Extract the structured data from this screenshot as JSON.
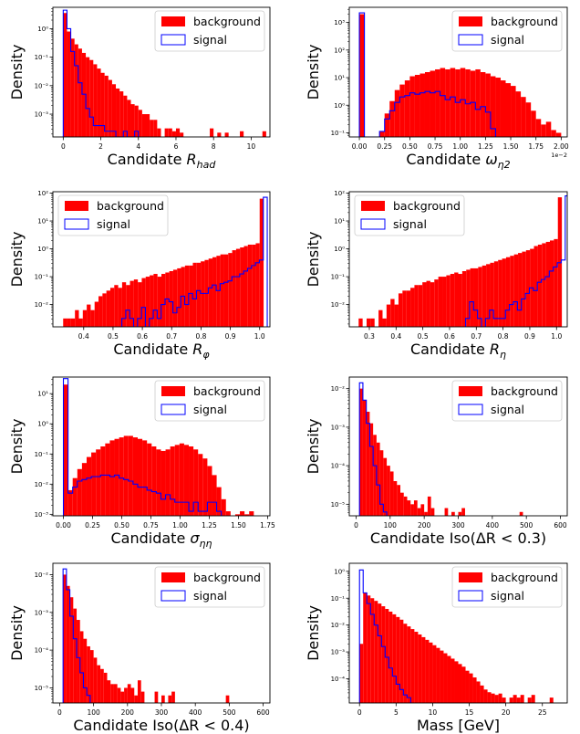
{
  "colors": {
    "background": "#ff0000",
    "signal": "#0000ff",
    "axis": "#000000"
  },
  "legend": {
    "background_label": "background",
    "signal_label": "signal"
  },
  "chart_data": [
    {
      "type": "histogram",
      "scale_y": "log",
      "ylabel": "Density",
      "xlabel": "Candidate R_had",
      "xlim": [
        -0.55,
        11.0
      ],
      "ylim_exp": [
        -3.8,
        0.75
      ],
      "xticks": [
        0,
        2,
        4,
        6,
        8,
        10
      ],
      "xtick_labels": [
        "0",
        "2",
        "4",
        "6",
        "8",
        "10"
      ],
      "yticks_exp": [
        0,
        -1,
        -2,
        -3
      ],
      "series": [
        {
          "name": "background",
          "kind": "filled",
          "bin_start": 0.0,
          "bin_width": 0.2,
          "log_values": [
            0.55,
            -0.1,
            -0.35,
            -0.55,
            -0.7,
            -0.85,
            -1.0,
            -1.1,
            -1.25,
            -1.4,
            -1.55,
            -1.65,
            -1.8,
            -1.95,
            -2.1,
            -2.2,
            -2.35,
            -2.5,
            -2.65,
            -2.7,
            -2.85,
            -3.0,
            -3.0,
            -3.2,
            -3.2,
            -3.5,
            null,
            -3.5,
            -3.5,
            -3.6,
            -3.5,
            -3.65,
            null,
            null,
            null,
            null,
            null,
            null,
            null,
            -3.5,
            null,
            -3.65,
            null,
            -3.65,
            null,
            null,
            null,
            -3.6,
            null,
            null,
            null,
            null,
            null,
            -3.6
          ]
        },
        {
          "name": "signal",
          "kind": "step",
          "bin_start": 0.0,
          "bin_width": 0.2,
          "log_values": [
            0.65,
            0.0,
            -0.8,
            -1.3,
            -1.9,
            -2.3,
            -2.8,
            -3.1,
            -3.4,
            -3.4,
            -3.4,
            -3.6,
            -3.6,
            -3.6,
            null,
            null,
            -3.6,
            null,
            null,
            -3.6
          ]
        }
      ]
    },
    {
      "type": "histogram",
      "scale_y": "log",
      "ylabel": "Density",
      "xlabel": "Candidate ω_η2",
      "xlim": [
        -0.1,
        2.06
      ],
      "ylim_exp": [
        -1.15,
        3.55
      ],
      "xticks": [
        0,
        0.25,
        0.5,
        0.75,
        1.0,
        1.25,
        1.5,
        1.75,
        2.0
      ],
      "xtick_labels": [
        "0.00",
        "0.25",
        "0.50",
        "0.75",
        "1.00",
        "1.25",
        "1.50",
        "1.75",
        "2.00"
      ],
      "offset_label": "1e−2",
      "yticks_exp": [
        3,
        2,
        1,
        0,
        -1
      ],
      "series": [
        {
          "name": "background",
          "kind": "filled",
          "bin_start": 0.0,
          "bin_width": 0.05,
          "log_values": [
            3.3,
            null,
            null,
            null,
            -0.95,
            -0.3,
            0.15,
            0.55,
            0.75,
            0.9,
            1.05,
            1.1,
            1.15,
            1.2,
            1.25,
            1.3,
            1.35,
            1.3,
            1.35,
            1.3,
            1.35,
            1.3,
            1.25,
            1.3,
            1.2,
            1.15,
            1.05,
            1.0,
            0.9,
            0.8,
            0.7,
            0.5,
            0.3,
            0.1,
            -0.2,
            -0.5,
            -0.7,
            -0.6,
            -0.9,
            -1.0
          ]
        },
        {
          "name": "signal",
          "kind": "step",
          "bin_start": 0.0,
          "bin_width": 0.05,
          "log_values": [
            3.35,
            null,
            null,
            null,
            -0.95,
            -0.5,
            -0.2,
            0.1,
            0.3,
            0.35,
            0.45,
            0.4,
            0.45,
            0.5,
            0.45,
            0.5,
            0.35,
            0.2,
            0.3,
            0.1,
            0.2,
            0.05,
            0.1,
            -0.15,
            -0.05,
            -0.25,
            -0.85
          ]
        }
      ]
    },
    {
      "type": "histogram",
      "scale_y": "log",
      "ylabel": "Density",
      "xlabel": "Candidate R_φ",
      "xlim": [
        0.295,
        1.035
      ],
      "ylim_exp": [
        -2.8,
        2.05
      ],
      "xticks": [
        0.4,
        0.5,
        0.6,
        0.7,
        0.8,
        0.9,
        1.0
      ],
      "xtick_labels": [
        "0.4",
        "0.5",
        "0.6",
        "0.7",
        "0.8",
        "0.9",
        "1.0"
      ],
      "yticks_exp": [
        2,
        1,
        0,
        -1,
        -2
      ],
      "series": [
        {
          "name": "background",
          "kind": "filled",
          "bin_start": 0.33,
          "bin_width": 0.0134,
          "log_values": [
            -2.5,
            -2.5,
            -2.5,
            -2.2,
            -2.5,
            -2.2,
            -2.0,
            -2.2,
            -1.9,
            -1.7,
            -1.6,
            -1.5,
            -1.4,
            -1.3,
            -1.4,
            -1.2,
            -1.3,
            -1.15,
            -1.1,
            -1.2,
            -1.05,
            -1.0,
            -0.95,
            -0.9,
            -1.0,
            -0.9,
            -0.85,
            -0.8,
            -0.75,
            -0.7,
            -0.65,
            -0.6,
            -0.6,
            -0.5,
            -0.5,
            -0.45,
            -0.4,
            -0.35,
            -0.3,
            -0.25,
            -0.2,
            -0.2,
            -0.15,
            -0.05,
            0.0,
            0.05,
            0.1,
            0.15,
            0.15,
            0.2,
            1.8
          ]
        },
        {
          "name": "signal",
          "kind": "step",
          "bin_start": 0.53,
          "bin_width": 0.0134,
          "log_values": [
            -2.5,
            -2.2,
            -2.5,
            null,
            -2.5,
            -2.1,
            null,
            -2.5,
            -2.2,
            -2.5,
            -2.0,
            -1.8,
            -1.9,
            -2.3,
            -2.1,
            -1.7,
            -2.0,
            -1.6,
            -1.8,
            -1.5,
            -1.6,
            -1.6,
            -1.4,
            -1.3,
            -1.5,
            -1.25,
            -1.2,
            -1.15,
            -1.0,
            -1.0,
            -0.9,
            -0.8,
            -0.7,
            -0.6,
            -0.5,
            -0.4,
            1.85
          ]
        }
      ]
    },
    {
      "type": "histogram",
      "scale_y": "log",
      "ylabel": "Density",
      "xlabel": "Candidate R_η",
      "xlim": [
        0.225,
        1.04
      ],
      "ylim_exp": [
        -2.8,
        2.05
      ],
      "xticks": [
        0.3,
        0.4,
        0.5,
        0.6,
        0.7,
        0.8,
        0.9,
        1.0
      ],
      "xtick_labels": [
        "0.3",
        "0.4",
        "0.5",
        "0.6",
        "0.7",
        "0.8",
        "0.9",
        "1.0"
      ],
      "yticks_exp": [
        2,
        1,
        0,
        -1,
        -2
      ],
      "series": [
        {
          "name": "background",
          "kind": "filled",
          "bin_start": 0.26,
          "bin_width": 0.0149,
          "log_values": [
            -2.5,
            null,
            -2.5,
            -2.5,
            null,
            -2.2,
            -2.5,
            -2.0,
            -1.8,
            -2.0,
            -1.6,
            -1.5,
            -1.5,
            -1.4,
            -1.3,
            -1.3,
            -1.2,
            -1.15,
            -1.2,
            -1.1,
            -1.0,
            -1.0,
            -0.95,
            -0.9,
            -0.85,
            -0.9,
            -0.8,
            -0.75,
            -0.7,
            -0.7,
            -0.65,
            -0.6,
            -0.55,
            -0.5,
            -0.45,
            -0.4,
            -0.35,
            -0.3,
            -0.25,
            -0.2,
            -0.15,
            -0.1,
            -0.05,
            0.0,
            0.1,
            0.15,
            0.2,
            0.25,
            0.3,
            0.35,
            1.85
          ]
        },
        {
          "name": "signal",
          "kind": "step",
          "bin_start": 0.66,
          "bin_width": 0.0149,
          "log_values": [
            -2.5,
            -1.9,
            -2.2,
            -2.5,
            null,
            -2.5,
            -2.2,
            -2.5,
            -2.5,
            -2.5,
            -2.2,
            -2.0,
            -1.9,
            -2.2,
            -1.8,
            -1.6,
            -1.4,
            -1.5,
            -1.2,
            -1.1,
            -1.0,
            -0.8,
            -0.65,
            -0.5,
            -0.4,
            1.9
          ]
        }
      ]
    },
    {
      "type": "histogram",
      "scale_y": "log",
      "ylabel": "Density",
      "xlabel": "Candidate σ_ηη",
      "xlim": [
        -0.09,
        1.77
      ],
      "ylim_exp": [
        -3.05,
        1.55
      ],
      "xticks": [
        0,
        0.25,
        0.5,
        0.75,
        1.0,
        1.25,
        1.5,
        1.75
      ],
      "xtick_labels": [
        "0.00",
        "0.25",
        "0.50",
        "0.75",
        "1.00",
        "1.25",
        "1.50",
        "1.75"
      ],
      "yticks_exp": [
        1,
        0,
        -1,
        -2,
        -3
      ],
      "series": [
        {
          "name": "background",
          "kind": "filled",
          "bin_start": 0.0,
          "bin_width": 0.0398,
          "log_values": [
            1.3,
            -2.2,
            -1.8,
            -1.5,
            -1.3,
            -1.1,
            -0.95,
            -0.85,
            -0.75,
            -0.65,
            -0.55,
            -0.5,
            -0.45,
            -0.4,
            -0.4,
            -0.45,
            -0.5,
            -0.55,
            -0.65,
            -0.75,
            -0.85,
            -0.9,
            -0.85,
            -0.75,
            -0.7,
            -0.65,
            -0.7,
            -0.75,
            -0.85,
            -1.0,
            -1.15,
            -1.4,
            -1.7,
            -2.1,
            -2.5,
            -2.9,
            null,
            -3.0,
            -2.9,
            -3.0,
            -2.9
          ]
        },
        {
          "name": "signal",
          "kind": "step",
          "bin_start": 0.0,
          "bin_width": 0.0398,
          "log_values": [
            1.5,
            -2.3,
            -2.1,
            -1.9,
            -1.85,
            -1.8,
            -1.75,
            -1.75,
            -1.7,
            -1.7,
            -1.75,
            -1.7,
            -1.8,
            -1.85,
            -1.9,
            -2.0,
            -2.1,
            -2.1,
            -2.2,
            -2.25,
            -2.3,
            -2.5,
            -2.35,
            -2.5,
            -2.6,
            -2.6,
            -2.6,
            -2.9,
            -2.6,
            -2.9,
            -2.9,
            -2.6,
            -2.6,
            -2.9
          ]
        }
      ]
    },
    {
      "type": "histogram",
      "scale_y": "log",
      "ylabel": "Density",
      "xlabel": "Candidate Iso(ΔR < 0.3)",
      "xlim": [
        -20,
        620
      ],
      "ylim_exp": [
        -5.3,
        -1.7
      ],
      "xticks": [
        0,
        100,
        200,
        300,
        400,
        500,
        600
      ],
      "xtick_labels": [
        "0",
        "100",
        "200",
        "300",
        "400",
        "500",
        "600"
      ],
      "yticks_exp": [
        -2,
        -3,
        -4,
        -5
      ],
      "series": [
        {
          "name": "background",
          "kind": "filled",
          "bin_start": 10,
          "bin_width": 10,
          "log_values": [
            -2.0,
            -2.3,
            -2.6,
            -2.9,
            -3.2,
            -3.4,
            -3.6,
            -3.8,
            -4.0,
            -4.15,
            -4.4,
            -4.5,
            -4.7,
            -4.8,
            -4.9,
            -5.0,
            -4.9,
            -5.1,
            -5.0,
            -5.2,
            -4.8,
            -5.1,
            null,
            null,
            null,
            -5.1,
            null,
            -5.2,
            null,
            -5.2,
            -5.1,
            null,
            null,
            null,
            null,
            null,
            null,
            null,
            null,
            null,
            null,
            null,
            null,
            null,
            null,
            null,
            null,
            -5.2
          ]
        },
        {
          "name": "signal",
          "kind": "step",
          "bin_start": 10,
          "bin_width": 10,
          "log_values": [
            -1.85,
            -2.3,
            -2.9,
            -3.5,
            -4.0,
            -4.5,
            -5.0,
            -5.2
          ]
        }
      ]
    },
    {
      "type": "histogram",
      "scale_y": "log",
      "ylabel": "Density",
      "xlabel": "Candidate Iso(ΔR < 0.4)",
      "xlim": [
        -20,
        620
      ],
      "ylim_exp": [
        -5.4,
        -1.7
      ],
      "xticks": [
        0,
        100,
        200,
        300,
        400,
        500,
        600
      ],
      "xtick_labels": [
        "0",
        "100",
        "200",
        "300",
        "400",
        "500",
        "600"
      ],
      "yticks_exp": [
        -2,
        -3,
        -4,
        -5
      ],
      "series": [
        {
          "name": "background",
          "kind": "filled",
          "bin_start": 10,
          "bin_width": 10,
          "log_values": [
            -2.0,
            -2.3,
            -2.6,
            -2.9,
            -3.2,
            -3.5,
            -3.7,
            -3.9,
            -4.0,
            -4.2,
            -4.4,
            -4.5,
            -4.6,
            -4.8,
            -4.9,
            -4.9,
            -5.0,
            -5.1,
            -5.0,
            -4.9,
            -5.0,
            -5.2,
            -4.8,
            -5.1,
            null,
            null,
            null,
            -5.1,
            null,
            -5.2,
            null,
            -5.2,
            -5.1,
            null,
            null,
            null,
            null,
            null,
            null,
            null,
            null,
            null,
            null,
            null,
            null,
            null,
            null,
            null,
            -5.2
          ]
        },
        {
          "name": "signal",
          "kind": "step",
          "bin_start": 10,
          "bin_width": 10,
          "log_values": [
            -1.85,
            -2.4,
            -3.1,
            -3.7,
            -4.2,
            -4.6,
            -5.0,
            -5.2
          ]
        }
      ]
    },
    {
      "type": "histogram",
      "scale_y": "log",
      "ylabel": "Density",
      "xlabel": "Mass [GeV]",
      "xlim": [
        -1.4,
        28.4
      ],
      "ylim_exp": [
        -4.9,
        0.3
      ],
      "xticks": [
        0,
        5,
        10,
        15,
        20,
        25
      ],
      "xtick_labels": [
        "0",
        "5",
        "10",
        "15",
        "20",
        "25"
      ],
      "yticks_exp": [
        0,
        -1,
        -2,
        -3,
        -4
      ],
      "series": [
        {
          "name": "background",
          "kind": "filled",
          "bin_start": 0.0,
          "bin_width": 0.5,
          "log_values": [
            -2.7,
            -0.8,
            -0.9,
            -1.0,
            -1.1,
            -1.2,
            -1.3,
            -1.4,
            -1.5,
            -1.6,
            -1.7,
            -1.8,
            -1.95,
            -2.05,
            -2.15,
            -2.25,
            -2.35,
            -2.45,
            -2.55,
            -2.65,
            -2.75,
            -2.85,
            -2.95,
            -3.05,
            -3.15,
            -3.25,
            -3.35,
            -3.45,
            -3.55,
            -3.7,
            -3.8,
            -3.95,
            -4.1,
            -4.25,
            -4.4,
            -4.5,
            -4.55,
            -4.6,
            -4.55,
            -4.7,
            null,
            -4.7,
            -4.6,
            -4.7,
            -4.6,
            null,
            -4.7,
            -4.6,
            null,
            null,
            null,
            null,
            -4.7
          ]
        },
        {
          "name": "signal",
          "kind": "step",
          "bin_start": 0.0,
          "bin_width": 0.5,
          "log_values": [
            0.05,
            -0.8,
            -1.2,
            -1.6,
            -2.0,
            -2.4,
            -2.8,
            -3.2,
            -3.6,
            -3.9,
            -4.2,
            -4.4,
            -4.6,
            -4.7
          ]
        }
      ]
    }
  ]
}
